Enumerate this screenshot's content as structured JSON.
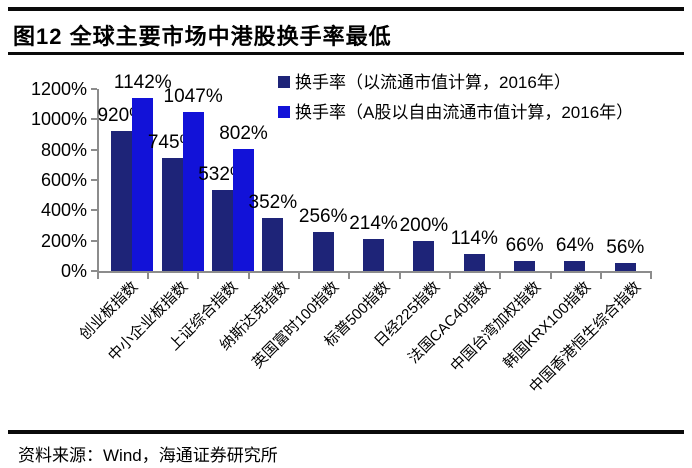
{
  "figure": {
    "title": "图12 全球主要市场中港股换手率最低",
    "source": "资料来源：Wind，海通证券研究所"
  },
  "colors": {
    "series1": "#1e2478",
    "series2": "#1212d8",
    "axis": "#8c8c8c",
    "text": "#000000",
    "rule": "#0a0a0a",
    "background": "#ffffff"
  },
  "chart_data": {
    "type": "bar",
    "title": "图12 全球主要市场中港股换手率最低",
    "categories": [
      "创业板指数",
      "中小企业板指数",
      "上证综合指数",
      "纳斯达克指数",
      "英国富时100指数",
      "标普500指数",
      "日经225指数",
      "法国CAC40指数",
      "中国台湾加权指数",
      "韩国KRX100指数",
      "中国香港恒生综合指数"
    ],
    "series": [
      {
        "name": "换手率（以流通市值计算，2016年）",
        "color_key": "series1",
        "values": [
          920,
          745,
          532,
          352,
          256,
          214,
          200,
          114,
          66,
          64,
          56
        ]
      },
      {
        "name": "换手率（A股以自由流通市值计算，2016年）",
        "color_key": "series2",
        "values": [
          1142,
          1047,
          802,
          null,
          null,
          null,
          null,
          null,
          null,
          null,
          null
        ]
      }
    ],
    "value_suffix": "%",
    "y_ticks": [
      0,
      200,
      400,
      600,
      800,
      1000,
      1200
    ],
    "ylim": [
      0,
      1200
    ],
    "xlabel": "",
    "ylabel": "",
    "grid": false,
    "legend_position": "top-right",
    "data_labels_shown": true
  }
}
